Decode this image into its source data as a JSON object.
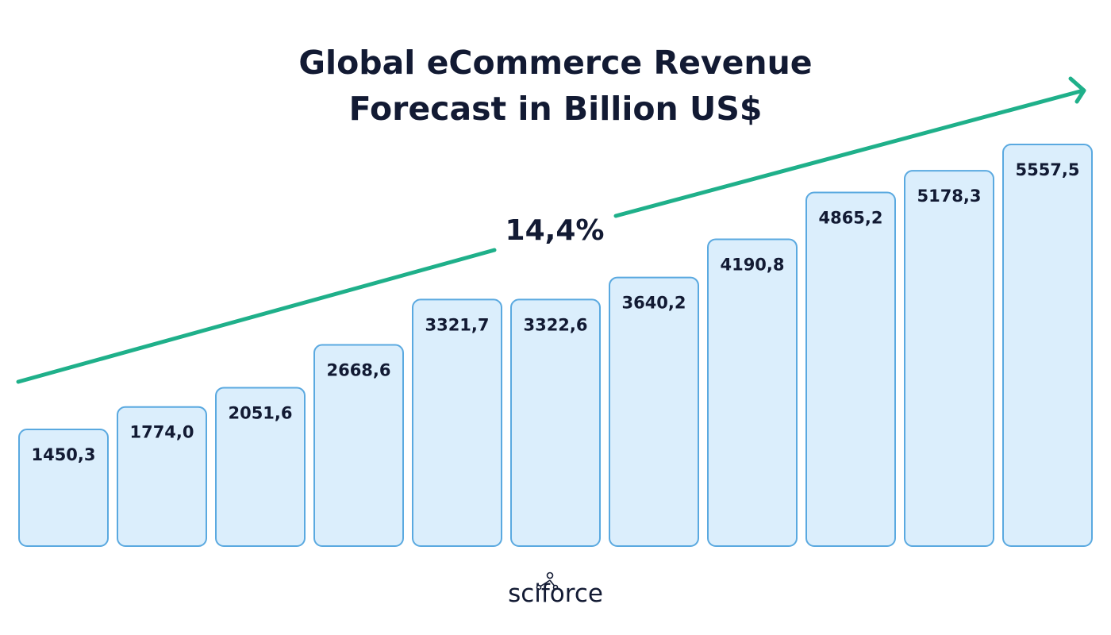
{
  "chart_data": {
    "type": "bar",
    "title_lines": [
      "Global eCommerce Revenue",
      "Forecast in Billion US$"
    ],
    "values": [
      1450.3,
      1774.0,
      2051.6,
      2668.6,
      3321.7,
      3322.6,
      3640.2,
      4190.8,
      4865.2,
      5178.3,
      5557.5
    ],
    "value_labels": [
      "1450,3",
      "1774,0",
      "2051,6",
      "2668,6",
      "3321,7",
      "3322,6",
      "3640,2",
      "4190,8",
      "4865,2",
      "5178,3",
      "5557,5"
    ],
    "trend_label": "14,4%",
    "grid": false,
    "colors": {
      "bar_fill": "#dbeefc",
      "bar_stroke": "#5aa9e0",
      "trend_line": "#1fb08a",
      "text": "#121a33"
    }
  },
  "brand": {
    "name": "sciforce",
    "icon": "network-dots-icon"
  }
}
